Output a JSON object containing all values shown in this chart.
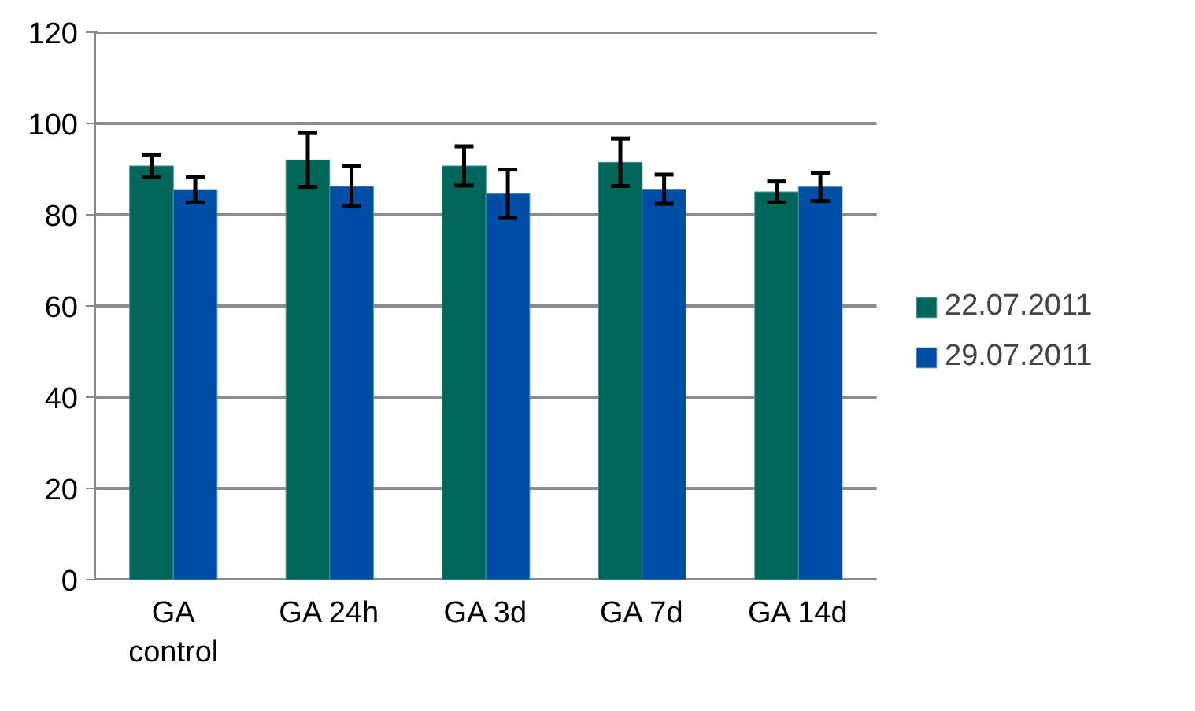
{
  "chart_data": {
    "type": "bar",
    "categories": [
      "GA\ncontrol",
      "GA 24h",
      "GA 3d",
      "GA 7d",
      "GA 14d"
    ],
    "series": [
      {
        "name": "22.07.2011",
        "color": "#006659",
        "values": [
          90.7,
          92.0,
          90.7,
          91.5,
          85.0
        ],
        "errors": [
          2.5,
          5.9,
          4.3,
          5.2,
          2.3
        ]
      },
      {
        "name": "29.07.2011",
        "color": "#004da8",
        "values": [
          85.5,
          86.2,
          84.6,
          85.6,
          86.1
        ],
        "errors": [
          2.8,
          4.4,
          5.3,
          3.2,
          3.1
        ]
      }
    ],
    "ylim": [
      0,
      120
    ],
    "yticks": [
      0,
      20,
      40,
      60,
      80,
      100,
      120
    ],
    "grid": "y",
    "legend": "right"
  }
}
